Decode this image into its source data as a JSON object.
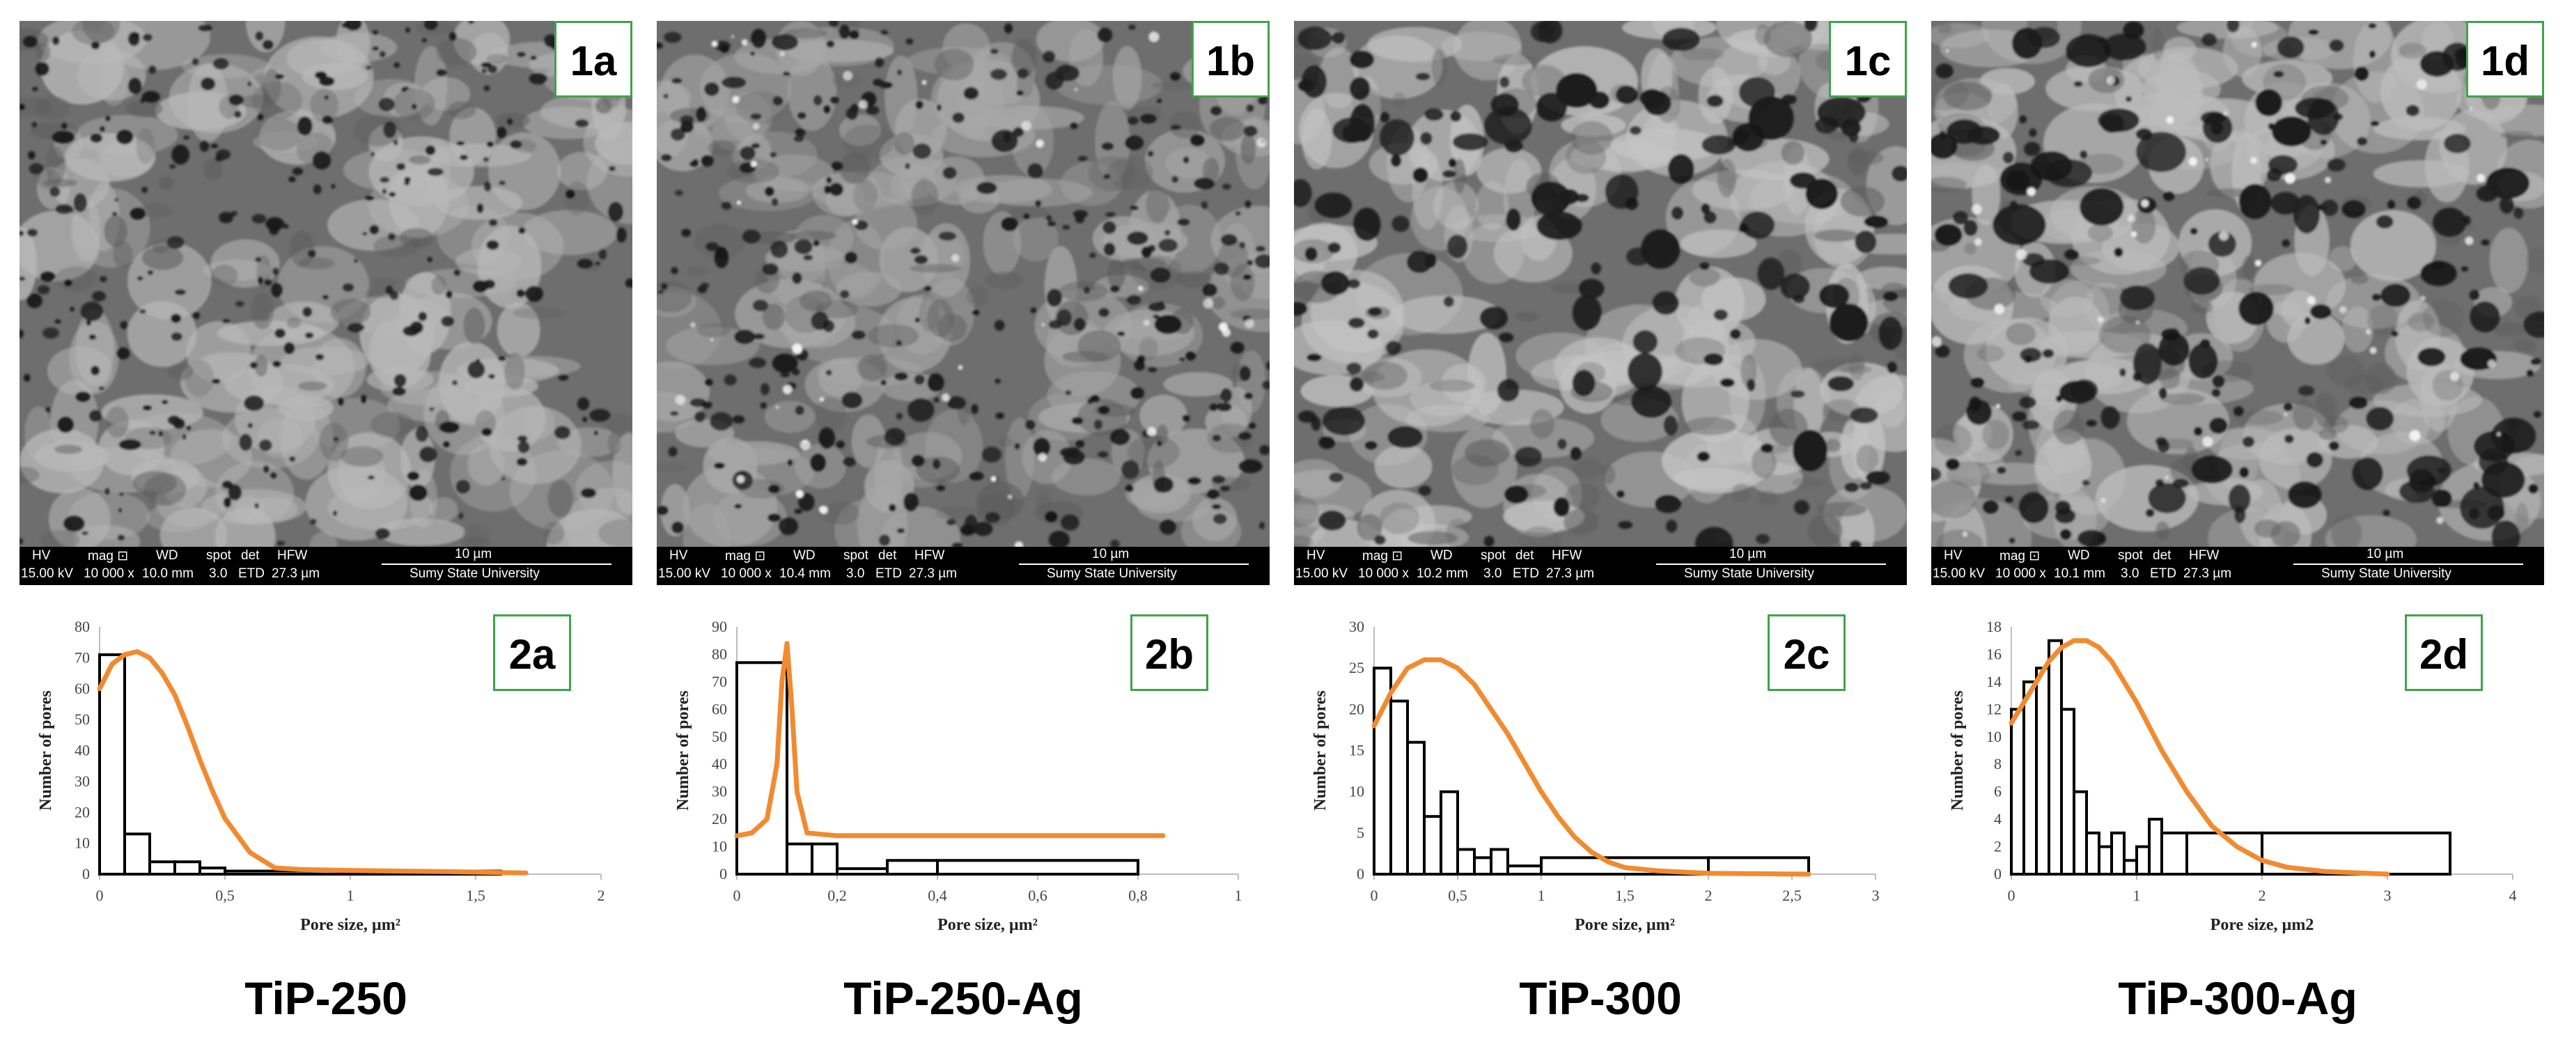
{
  "panels": [
    {
      "sem_label": "1a",
      "sem_info": {
        "hv": "HV",
        "hv_val": "15.00 kV",
        "mag": "mag ⊡",
        "mag_val": "10 000 x",
        "wd": "WD",
        "wd_val": "10.0 mm",
        "spot": "spot",
        "spot_val": "3.0",
        "det": "det",
        "det_val": "ETD",
        "hfw": "HFW",
        "hfw_val": "27.3 µm",
        "scale": "10 µm",
        "org": "Sumy State University"
      },
      "chart_label": "2a",
      "sample": "TiP-250",
      "colors": {
        "hole": "#1a1a1a",
        "surface": "#b9b9b9",
        "curve": "#f28a30"
      }
    },
    {
      "sem_label": "1b",
      "sem_info": {
        "hv": "HV",
        "hv_val": "15.00 kV",
        "mag": "mag ⊡",
        "mag_val": "10 000 x",
        "wd": "WD",
        "wd_val": "10.4 mm",
        "spot": "spot",
        "spot_val": "3.0",
        "det": "det",
        "det_val": "ETD",
        "hfw": "HFW",
        "hfw_val": "27.3 µm",
        "scale": "10 µm",
        "org": "Sumy State University"
      },
      "chart_label": "2b",
      "sample": "TiP-250-Ag",
      "colors": {
        "hole": "#1a1a1a",
        "surface": "#a9a9a9",
        "curve": "#f28a30"
      }
    },
    {
      "sem_label": "1c",
      "sem_info": {
        "hv": "HV",
        "hv_val": "15.00 kV",
        "mag": "mag ⊡",
        "mag_val": "10 000 x",
        "wd": "WD",
        "wd_val": "10.2 mm",
        "spot": "spot",
        "spot_val": "3.0",
        "det": "det",
        "det_val": "ETD",
        "hfw": "HFW",
        "hfw_val": "27.3 µm",
        "scale": "10 µm",
        "org": "Sumy State University"
      },
      "chart_label": "2c",
      "sample": "TiP-300",
      "colors": {
        "hole": "#1a1a1a",
        "surface": "#c4c4c4",
        "curve": "#f28a30"
      }
    },
    {
      "sem_label": "1d",
      "sem_info": {
        "hv": "HV",
        "hv_val": "15.00 kV",
        "mag": "mag ⊡",
        "mag_val": "10 000 x",
        "wd": "WD",
        "wd_val": "10.1 mm",
        "spot": "spot",
        "spot_val": "3.0",
        "det": "det",
        "det_val": "ETD",
        "hfw": "HFW",
        "hfw_val": "27.3 µm",
        "scale": "10 µm",
        "org": "Sumy State University"
      },
      "chart_label": "2d",
      "sample": "TiP-300-Ag",
      "colors": {
        "hole": "#1a1a1a",
        "surface": "#bdbdbd",
        "curve": "#f28a30"
      }
    }
  ],
  "chart_data": [
    {
      "type": "bar",
      "subtype": "histogram",
      "xlabel": "Pore size, µm²",
      "ylabel": "Number of pores",
      "xlim": [
        0,
        2
      ],
      "ylim": [
        0,
        80
      ],
      "xticks": [
        "0",
        "0,5",
        "1",
        "1,5",
        "2"
      ],
      "xtick_values": [
        0,
        0.5,
        1,
        1.5,
        2
      ],
      "yticks": [
        "0",
        "10",
        "20",
        "30",
        "40",
        "50",
        "60",
        "70",
        "80"
      ],
      "ytick_values": [
        0,
        10,
        20,
        30,
        40,
        50,
        60,
        70,
        80
      ],
      "bins": [
        {
          "x0": 0,
          "x1": 0.1,
          "count": 71
        },
        {
          "x0": 0.1,
          "x1": 0.2,
          "count": 13
        },
        {
          "x0": 0.2,
          "x1": 0.3,
          "count": 4
        },
        {
          "x0": 0.3,
          "x1": 0.4,
          "count": 4
        },
        {
          "x0": 0.4,
          "x1": 0.5,
          "count": 2
        },
        {
          "x0": 0.5,
          "x1": 1.6,
          "count": 1
        }
      ],
      "curve": {
        "x": [
          0,
          0.05,
          0.1,
          0.15,
          0.2,
          0.25,
          0.3,
          0.35,
          0.4,
          0.45,
          0.5,
          0.6,
          0.7,
          0.8,
          1.0,
          1.2,
          1.4,
          1.6,
          1.7
        ],
        "y": [
          60,
          68,
          71,
          72,
          70,
          65,
          58,
          48,
          37,
          27,
          18,
          7,
          2,
          1.5,
          1.2,
          1,
          0.8,
          0.5,
          0.4
        ]
      }
    },
    {
      "type": "bar",
      "subtype": "histogram",
      "xlabel": "Pore size, µm²",
      "ylabel": "Number of pores",
      "xlim": [
        0,
        1
      ],
      "ylim": [
        0,
        90
      ],
      "xticks": [
        "0",
        "0,2",
        "0,4",
        "0,6",
        "0,8",
        "1"
      ],
      "xtick_values": [
        0,
        0.2,
        0.4,
        0.6,
        0.8,
        1
      ],
      "yticks": [
        "0",
        "10",
        "20",
        "30",
        "40",
        "50",
        "60",
        "70",
        "80",
        "90"
      ],
      "ytick_values": [
        0,
        10,
        20,
        30,
        40,
        50,
        60,
        70,
        80,
        90
      ],
      "bins": [
        {
          "x0": 0,
          "x1": 0.1,
          "count": 77
        },
        {
          "x0": 0.1,
          "x1": 0.15,
          "count": 11
        },
        {
          "x0": 0.15,
          "x1": 0.2,
          "count": 11
        },
        {
          "x0": 0.2,
          "x1": 0.3,
          "count": 2
        },
        {
          "x0": 0.3,
          "x1": 0.4,
          "count": 5
        },
        {
          "x0": 0.4,
          "x1": 0.8,
          "count": 5
        }
      ],
      "curve": {
        "x": [
          0,
          0.03,
          0.06,
          0.08,
          0.09,
          0.1,
          0.11,
          0.12,
          0.14,
          0.2,
          0.4,
          0.6,
          0.85
        ],
        "y": [
          14,
          15,
          20,
          40,
          70,
          84,
          60,
          30,
          15,
          14,
          14,
          14,
          14
        ]
      }
    },
    {
      "type": "bar",
      "subtype": "histogram",
      "xlabel": "Pore size, µm²",
      "ylabel": "Number of pores",
      "xlim": [
        0,
        3
      ],
      "ylim": [
        0,
        30
      ],
      "xticks": [
        "0",
        "0,5",
        "1",
        "1,5",
        "2",
        "2,5",
        "3"
      ],
      "xtick_values": [
        0,
        0.5,
        1,
        1.5,
        2,
        2.5,
        3
      ],
      "yticks": [
        "0",
        "5",
        "10",
        "15",
        "20",
        "25",
        "30"
      ],
      "ytick_values": [
        0,
        5,
        10,
        15,
        20,
        25,
        30
      ],
      "bins": [
        {
          "x0": 0,
          "x1": 0.1,
          "count": 25
        },
        {
          "x0": 0.1,
          "x1": 0.2,
          "count": 21
        },
        {
          "x0": 0.2,
          "x1": 0.3,
          "count": 16
        },
        {
          "x0": 0.3,
          "x1": 0.4,
          "count": 7
        },
        {
          "x0": 0.4,
          "x1": 0.5,
          "count": 10
        },
        {
          "x0": 0.5,
          "x1": 0.6,
          "count": 3
        },
        {
          "x0": 0.6,
          "x1": 0.7,
          "count": 2
        },
        {
          "x0": 0.7,
          "x1": 0.8,
          "count": 3
        },
        {
          "x0": 0.8,
          "x1": 1.0,
          "count": 1
        },
        {
          "x0": 1.0,
          "x1": 2.0,
          "count": 2
        },
        {
          "x0": 2.0,
          "x1": 2.6,
          "count": 2
        }
      ],
      "curve": {
        "x": [
          0,
          0.1,
          0.2,
          0.3,
          0.4,
          0.5,
          0.6,
          0.7,
          0.8,
          0.9,
          1.0,
          1.1,
          1.2,
          1.3,
          1.4,
          1.5,
          1.7,
          2.0,
          2.3,
          2.6
        ],
        "y": [
          18,
          22,
          25,
          26,
          26,
          25,
          23,
          20,
          17,
          13.5,
          10,
          7,
          4.5,
          2.7,
          1.5,
          0.8,
          0.4,
          0.1,
          0.05,
          0
        ]
      }
    },
    {
      "type": "bar",
      "subtype": "histogram",
      "xlabel": "Pore size, µm2",
      "ylabel": "Number of pores",
      "xlim": [
        0,
        4
      ],
      "ylim": [
        0,
        18
      ],
      "xticks": [
        "0",
        "1",
        "2",
        "3",
        "4"
      ],
      "xtick_values": [
        0,
        1,
        2,
        3,
        4
      ],
      "yticks": [
        "0",
        "2",
        "4",
        "6",
        "8",
        "10",
        "12",
        "14",
        "16",
        "18"
      ],
      "ytick_values": [
        0,
        2,
        4,
        6,
        8,
        10,
        12,
        14,
        16,
        18
      ],
      "bins": [
        {
          "x0": 0,
          "x1": 0.1,
          "count": 12
        },
        {
          "x0": 0.1,
          "x1": 0.2,
          "count": 14
        },
        {
          "x0": 0.2,
          "x1": 0.3,
          "count": 15
        },
        {
          "x0": 0.3,
          "x1": 0.4,
          "count": 17
        },
        {
          "x0": 0.4,
          "x1": 0.5,
          "count": 12
        },
        {
          "x0": 0.5,
          "x1": 0.6,
          "count": 6
        },
        {
          "x0": 0.6,
          "x1": 0.7,
          "count": 3
        },
        {
          "x0": 0.7,
          "x1": 0.8,
          "count": 2
        },
        {
          "x0": 0.8,
          "x1": 0.9,
          "count": 3
        },
        {
          "x0": 0.9,
          "x1": 1.0,
          "count": 1
        },
        {
          "x0": 1.0,
          "x1": 1.1,
          "count": 2
        },
        {
          "x0": 1.1,
          "x1": 1.2,
          "count": 4
        },
        {
          "x0": 1.2,
          "x1": 1.4,
          "count": 3
        },
        {
          "x0": 1.4,
          "x1": 2.0,
          "count": 3
        },
        {
          "x0": 2.0,
          "x1": 3.5,
          "count": 3
        }
      ],
      "curve": {
        "x": [
          0,
          0.1,
          0.2,
          0.3,
          0.4,
          0.5,
          0.6,
          0.7,
          0.8,
          0.9,
          1.0,
          1.2,
          1.4,
          1.6,
          1.8,
          2.0,
          2.2,
          2.5,
          3.0
        ],
        "y": [
          11,
          12.5,
          14,
          15.5,
          16.5,
          17,
          17,
          16.5,
          15.5,
          14,
          12.5,
          9,
          6,
          3.5,
          2,
          1,
          0.5,
          0.2,
          0
        ]
      }
    }
  ]
}
